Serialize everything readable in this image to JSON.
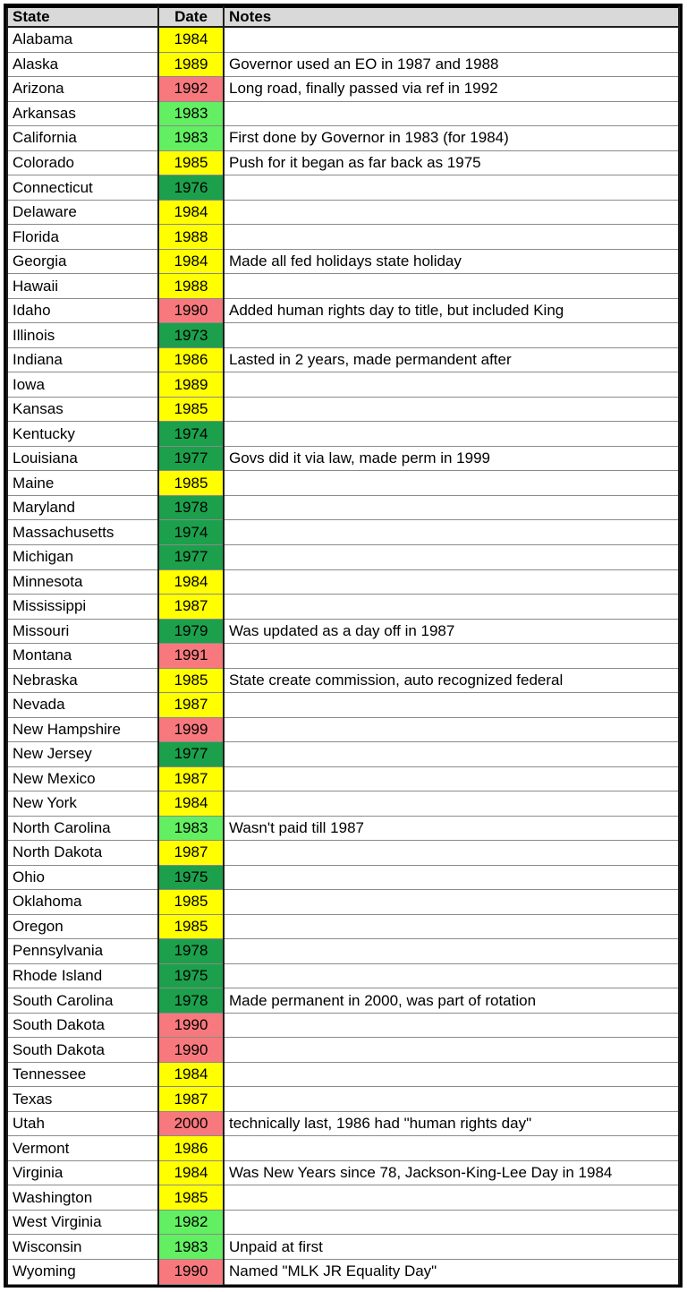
{
  "colors": {
    "yellow": "#FFFF00",
    "lightgreen": "#62EF62",
    "green": "#1CA04C",
    "red": "#F7797D",
    "header_bg": "#D9D9D9",
    "grid_horizontal": "#8A8A8A",
    "grid_vertical": "#1E1E1E",
    "outer_border": "#000000"
  },
  "table": {
    "columns": [
      {
        "key": "state",
        "label": "State"
      },
      {
        "key": "date",
        "label": "Date"
      },
      {
        "key": "notes",
        "label": "Notes"
      }
    ],
    "rows": [
      {
        "state": "Alabama",
        "date": "1984",
        "color": "yellow",
        "notes": ""
      },
      {
        "state": "Alaska",
        "date": "1989",
        "color": "yellow",
        "notes": "Governor used an EO in 1987 and 1988"
      },
      {
        "state": "Arizona",
        "date": "1992",
        "color": "red",
        "notes": "Long road, finally passed via ref in 1992"
      },
      {
        "state": "Arkansas",
        "date": "1983",
        "color": "lightgreen",
        "notes": ""
      },
      {
        "state": "California",
        "date": "1983",
        "color": "lightgreen",
        "notes": "First done by Governor in 1983 (for 1984)"
      },
      {
        "state": "Colorado",
        "date": "1985",
        "color": "yellow",
        "notes": "Push for it began as far back as 1975"
      },
      {
        "state": "Connecticut",
        "date": "1976",
        "color": "green",
        "notes": ""
      },
      {
        "state": "Delaware",
        "date": "1984",
        "color": "yellow",
        "notes": ""
      },
      {
        "state": "Florida",
        "date": "1988",
        "color": "yellow",
        "notes": ""
      },
      {
        "state": "Georgia",
        "date": "1984",
        "color": "yellow",
        "notes": "Made all fed holidays state holiday"
      },
      {
        "state": "Hawaii",
        "date": "1988",
        "color": "yellow",
        "notes": ""
      },
      {
        "state": "Idaho",
        "date": "1990",
        "color": "red",
        "notes": "Added human rights day to title, but included King"
      },
      {
        "state": "Illinois",
        "date": "1973",
        "color": "green",
        "notes": ""
      },
      {
        "state": "Indiana",
        "date": "1986",
        "color": "yellow",
        "notes": "Lasted in 2 years, made permandent after"
      },
      {
        "state": "Iowa",
        "date": "1989",
        "color": "yellow",
        "notes": ""
      },
      {
        "state": "Kansas",
        "date": "1985",
        "color": "yellow",
        "notes": ""
      },
      {
        "state": "Kentucky",
        "date": "1974",
        "color": "green",
        "notes": ""
      },
      {
        "state": "Louisiana",
        "date": "1977",
        "color": "green",
        "notes": "Govs did it via law, made perm in 1999"
      },
      {
        "state": "Maine",
        "date": "1985",
        "color": "yellow",
        "notes": ""
      },
      {
        "state": "Maryland",
        "date": "1978",
        "color": "green",
        "notes": ""
      },
      {
        "state": "Massachusetts",
        "date": "1974",
        "color": "green",
        "notes": ""
      },
      {
        "state": "Michigan",
        "date": "1977",
        "color": "green",
        "notes": ""
      },
      {
        "state": "Minnesota",
        "date": "1984",
        "color": "yellow",
        "notes": ""
      },
      {
        "state": "Mississippi",
        "date": "1987",
        "color": "yellow",
        "notes": ""
      },
      {
        "state": "Missouri",
        "date": "1979",
        "color": "green",
        "notes": "Was updated as a day off in 1987"
      },
      {
        "state": "Montana",
        "date": "1991",
        "color": "red",
        "notes": ""
      },
      {
        "state": "Nebraska",
        "date": "1985",
        "color": "yellow",
        "notes": "State create commission, auto recognized federal"
      },
      {
        "state": "Nevada",
        "date": "1987",
        "color": "yellow",
        "notes": ""
      },
      {
        "state": "New Hampshire",
        "date": "1999",
        "color": "red",
        "notes": ""
      },
      {
        "state": "New Jersey",
        "date": "1977",
        "color": "green",
        "notes": ""
      },
      {
        "state": "New Mexico",
        "date": "1987",
        "color": "yellow",
        "notes": ""
      },
      {
        "state": "New York",
        "date": "1984",
        "color": "yellow",
        "notes": ""
      },
      {
        "state": "North Carolina",
        "date": "1983",
        "color": "lightgreen",
        "notes": "Wasn't paid till 1987"
      },
      {
        "state": "North Dakota",
        "date": "1987",
        "color": "yellow",
        "notes": ""
      },
      {
        "state": "Ohio",
        "date": "1975",
        "color": "green",
        "notes": ""
      },
      {
        "state": "Oklahoma",
        "date": "1985",
        "color": "yellow",
        "notes": ""
      },
      {
        "state": "Oregon",
        "date": "1985",
        "color": "yellow",
        "notes": ""
      },
      {
        "state": "Pennsylvania",
        "date": "1978",
        "color": "green",
        "notes": ""
      },
      {
        "state": "Rhode Island",
        "date": "1975",
        "color": "green",
        "notes": ""
      },
      {
        "state": "South Carolina",
        "date": "1978",
        "color": "green",
        "notes": "Made permanent in 2000, was part of rotation"
      },
      {
        "state": "South Dakota",
        "date": "1990",
        "color": "red",
        "notes": ""
      },
      {
        "state": "South Dakota",
        "date": "1990",
        "color": "red",
        "notes": ""
      },
      {
        "state": "Tennessee",
        "date": "1984",
        "color": "yellow",
        "notes": ""
      },
      {
        "state": "Texas",
        "date": "1987",
        "color": "yellow",
        "notes": ""
      },
      {
        "state": "Utah",
        "date": "2000",
        "color": "red",
        "notes": "technically last, 1986 had \"human rights day\""
      },
      {
        "state": "Vermont",
        "date": "1986",
        "color": "yellow",
        "notes": ""
      },
      {
        "state": "Virginia",
        "date": "1984",
        "color": "yellow",
        "notes": "Was New Years since 78, Jackson-King-Lee Day in 1984"
      },
      {
        "state": "Washington",
        "date": "1985",
        "color": "yellow",
        "notes": ""
      },
      {
        "state": "West Virginia",
        "date": "1982",
        "color": "lightgreen",
        "notes": ""
      },
      {
        "state": "Wisconsin",
        "date": "1983",
        "color": "lightgreen",
        "notes": "Unpaid at first"
      },
      {
        "state": "Wyoming",
        "date": "1990",
        "color": "red",
        "notes": "Named \"MLK JR Equality Day\""
      }
    ]
  }
}
